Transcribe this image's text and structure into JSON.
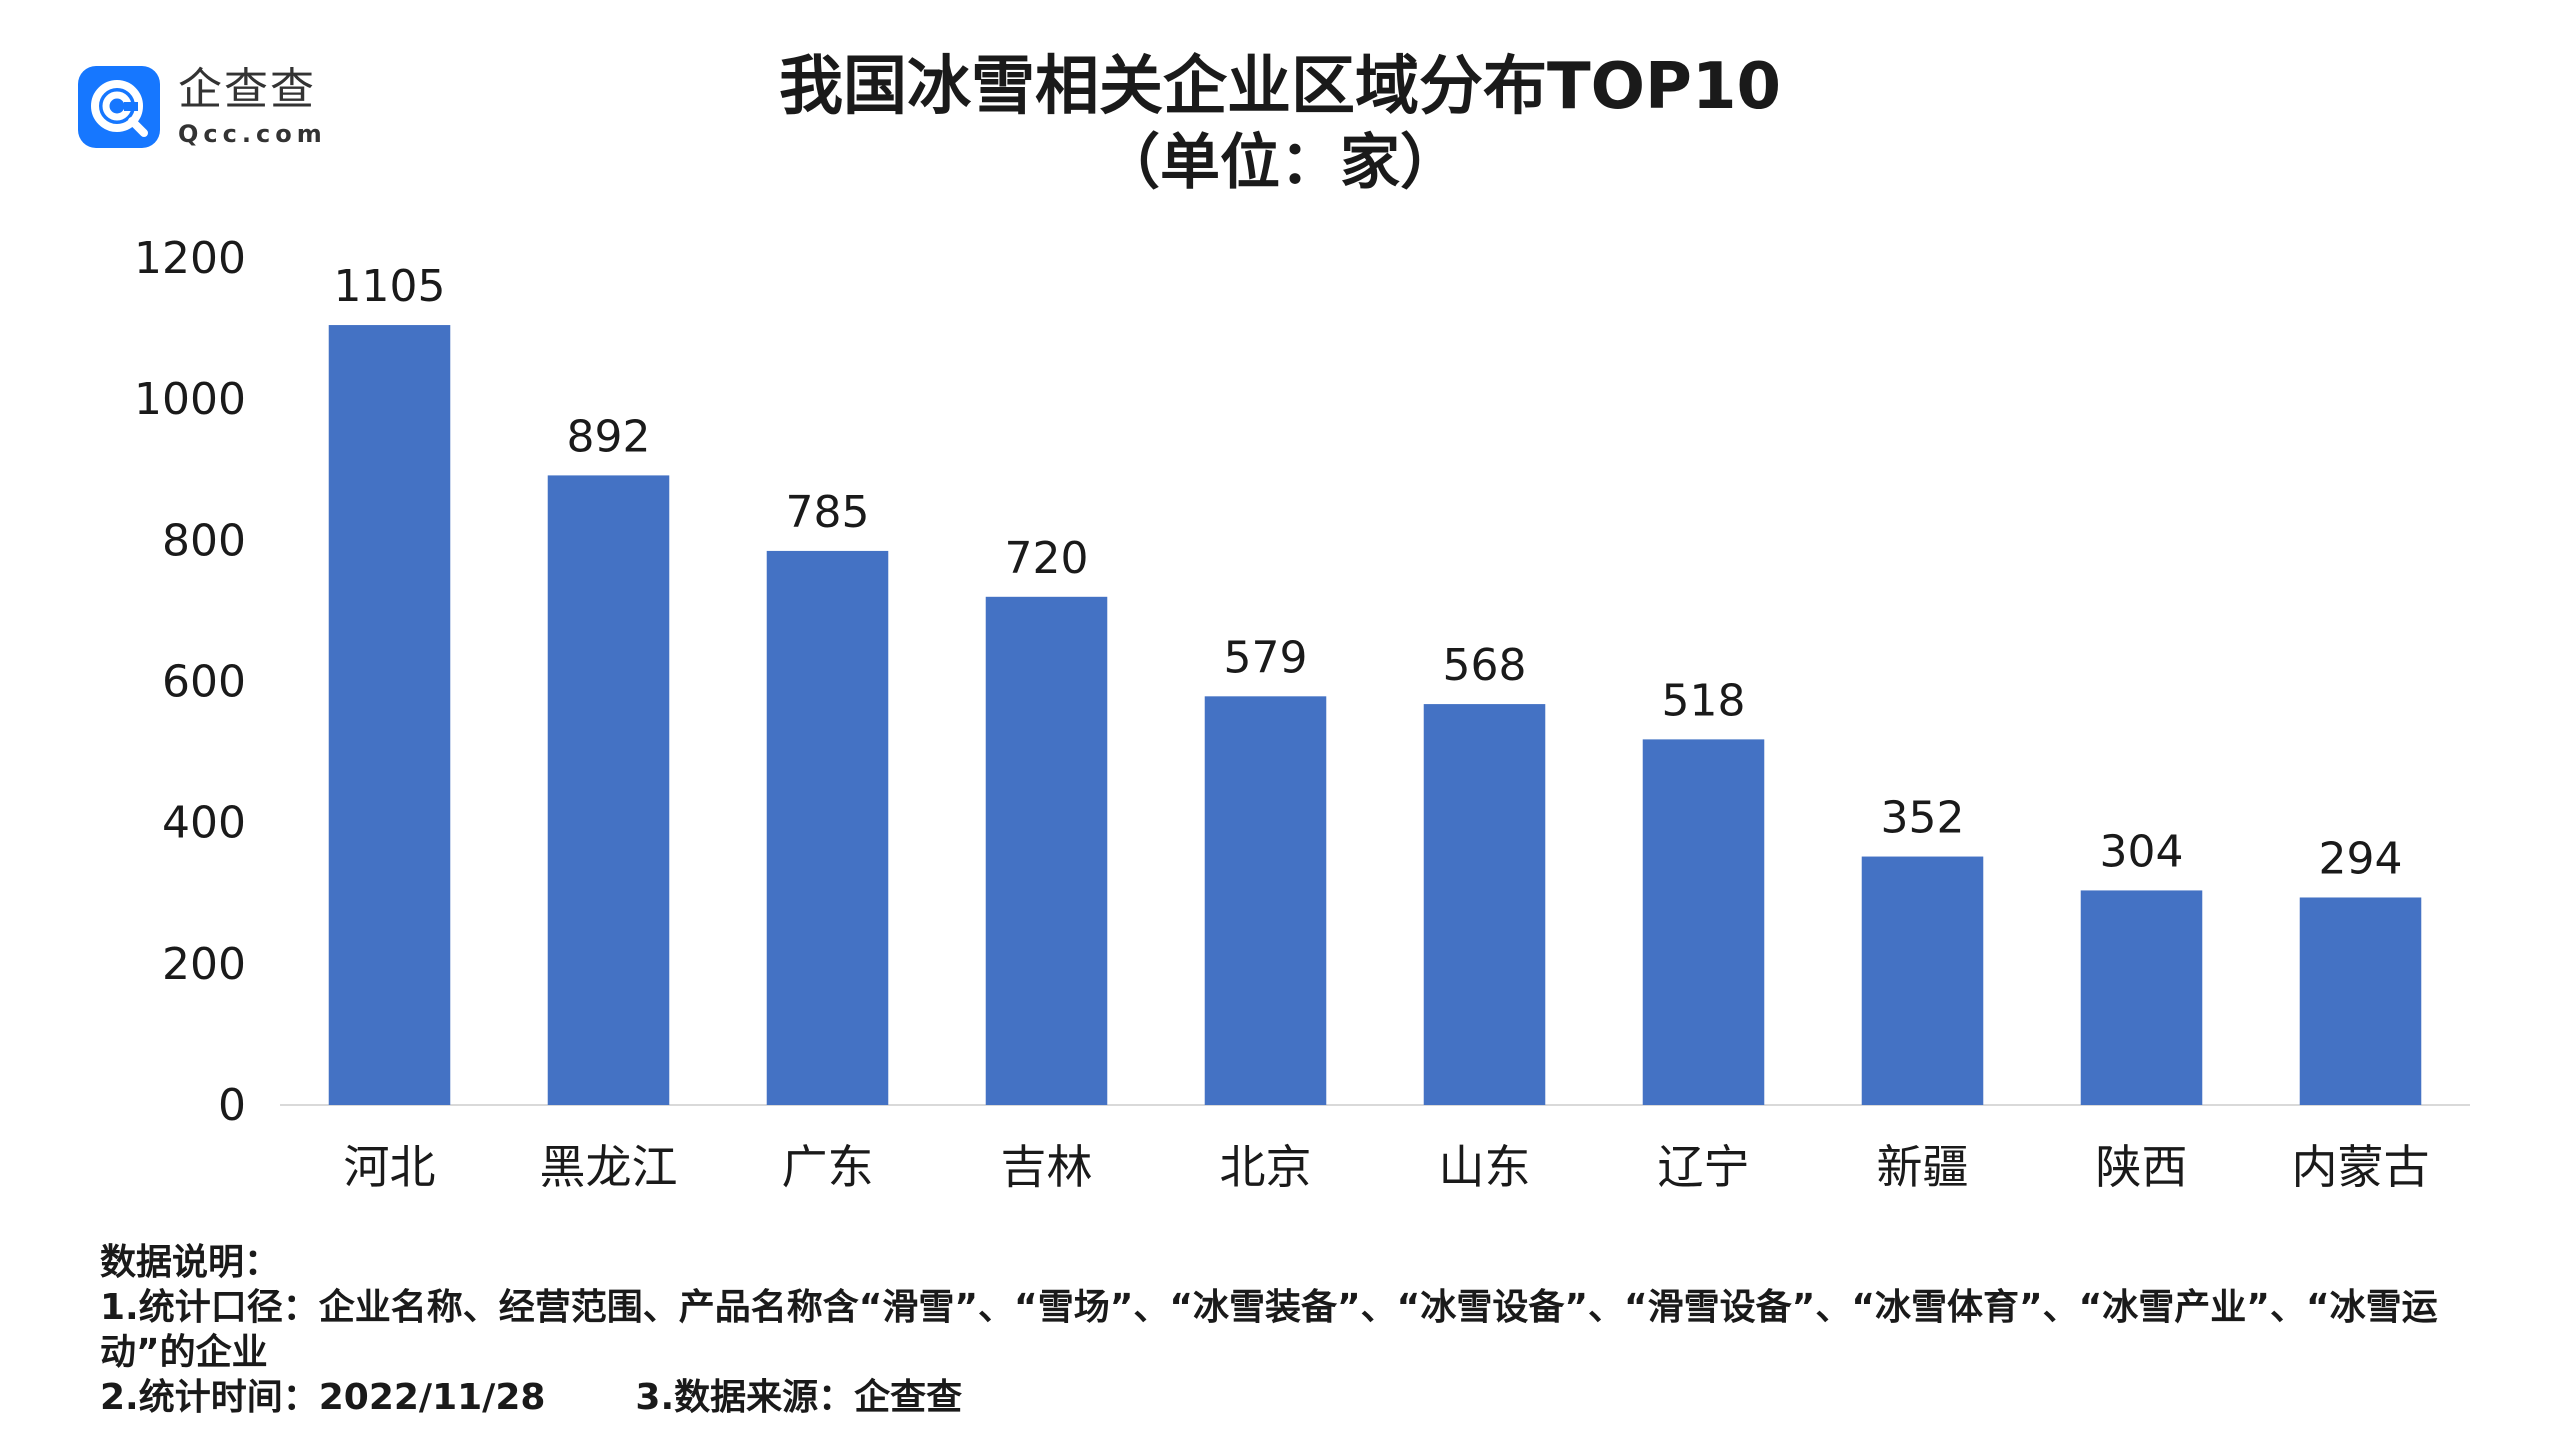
{
  "logo": {
    "name": "企查查",
    "domain": "Qcc.com",
    "color": "#1677ff"
  },
  "chart_data": {
    "type": "bar",
    "title": "我国冰雪相关企业区域分布TOP10",
    "subtitle": "（单位：家）",
    "categories": [
      "河北",
      "黑龙江",
      "广东",
      "吉林",
      "北京",
      "山东",
      "辽宁",
      "新疆",
      "陕西",
      "内蒙古"
    ],
    "values": [
      1105,
      892,
      785,
      720,
      579,
      568,
      518,
      352,
      304,
      294
    ],
    "ylim": [
      0,
      1200
    ],
    "yticks": [
      0,
      200,
      400,
      600,
      800,
      1000,
      1200
    ],
    "xlabel": "",
    "ylabel": "",
    "bar_color": "#4472c4",
    "grid": false,
    "data_labels": true
  },
  "notes": {
    "heading": "数据说明：",
    "item1": "1.统计口径：企业名称、经营范围、产品名称含“滑雪”、“雪场”、“冰雪装备”、“冰雪设备”、“滑雪设备”、“冰雪体育”、“冰雪产业”、“冰雪运动”的企业",
    "item2": "2.统计时间：2022/11/28",
    "item3": "3.数据来源：企查查"
  }
}
